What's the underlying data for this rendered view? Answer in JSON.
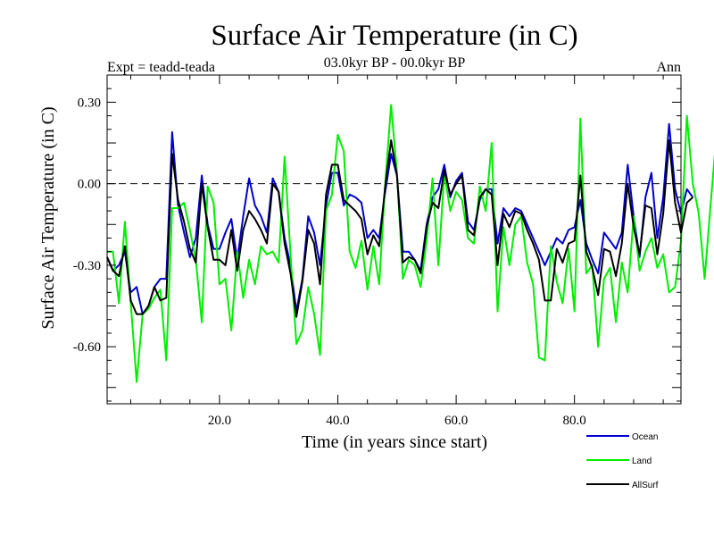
{
  "chart_data": {
    "type": "line",
    "title": "Surface Air Temperature (in C)",
    "subtitle": "03.0kyr BP - 00.0kyr BP",
    "expt_label": "Expt = teadd-teada",
    "period_label": "Ann",
    "xlabel": "Time (in years since start)",
    "ylabel": "Surface Air Temperature (in C)",
    "xlim": [
      1,
      98
    ],
    "ylim": [
      -0.81,
      0.4
    ],
    "x_ticks": [
      20,
      40,
      60,
      80
    ],
    "x_tick_labels": [
      "20.0",
      "40.0",
      "60.0",
      "80.0"
    ],
    "y_ticks": [
      0.3,
      0.0,
      -0.3,
      -0.6
    ],
    "y_tick_labels": [
      "0.30",
      "0.00",
      "-0.30",
      "-0.60"
    ],
    "zero_line": "dashed",
    "legend_position": "bottom-right",
    "x_start": 1,
    "series": [
      {
        "name": "Ocean",
        "color": "#0000cc",
        "values": [
          -0.27,
          -0.32,
          -0.3,
          -0.25,
          -0.4,
          -0.38,
          -0.48,
          -0.45,
          -0.38,
          -0.35,
          -0.35,
          0.19,
          -0.08,
          -0.18,
          -0.27,
          -0.2,
          0.03,
          -0.15,
          -0.24,
          -0.24,
          -0.18,
          -0.13,
          -0.28,
          -0.12,
          0.02,
          -0.08,
          -0.12,
          -0.18,
          0.02,
          -0.03,
          -0.2,
          -0.3,
          -0.47,
          -0.35,
          -0.12,
          -0.18,
          -0.3,
          -0.08,
          0.04,
          0.04,
          -0.08,
          -0.04,
          -0.05,
          -0.07,
          -0.2,
          -0.17,
          -0.2,
          -0.03,
          0.11,
          0.03,
          -0.25,
          -0.25,
          -0.28,
          -0.32,
          -0.15,
          -0.05,
          -0.02,
          0.07,
          -0.05,
          0.01,
          0.04,
          -0.14,
          -0.17,
          -0.06,
          -0.02,
          -0.02,
          -0.22,
          -0.09,
          -0.12,
          -0.09,
          -0.1,
          -0.15,
          -0.2,
          -0.25,
          -0.3,
          -0.25,
          -0.2,
          -0.22,
          -0.17,
          -0.16,
          -0.06,
          -0.22,
          -0.28,
          -0.33,
          -0.18,
          -0.21,
          -0.24,
          -0.18,
          0.07,
          -0.12,
          -0.27,
          -0.05,
          0.04,
          -0.2,
          -0.05,
          0.22,
          -0.02,
          -0.11,
          -0.02,
          -0.05
        ]
      },
      {
        "name": "Land",
        "color": "#00ee00",
        "values": [
          -0.25,
          -0.25,
          -0.44,
          -0.14,
          -0.44,
          -0.73,
          -0.48,
          -0.46,
          -0.42,
          -0.39,
          -0.65,
          -0.09,
          -0.09,
          -0.07,
          -0.17,
          -0.28,
          -0.51,
          -0.01,
          -0.07,
          -0.37,
          -0.35,
          -0.54,
          -0.25,
          -0.42,
          -0.28,
          -0.37,
          -0.23,
          -0.26,
          -0.25,
          -0.29,
          0.1,
          -0.26,
          -0.59,
          -0.54,
          -0.38,
          -0.48,
          -0.63,
          -0.1,
          -0.04,
          0.18,
          0.12,
          -0.25,
          -0.31,
          -0.21,
          -0.39,
          -0.23,
          -0.37,
          0.0,
          0.29,
          0.04,
          -0.35,
          -0.28,
          -0.3,
          -0.38,
          -0.21,
          0.02,
          -0.3,
          0.04,
          -0.1,
          -0.03,
          -0.06,
          -0.2,
          -0.22,
          -0.01,
          -0.1,
          0.15,
          -0.47,
          -0.16,
          -0.3,
          -0.15,
          -0.12,
          -0.29,
          -0.37,
          -0.64,
          -0.65,
          -0.23,
          -0.36,
          -0.44,
          -0.24,
          -0.47,
          0.24,
          -0.33,
          -0.3,
          -0.6,
          -0.35,
          -0.31,
          -0.51,
          -0.29,
          -0.4,
          -0.12,
          -0.32,
          -0.25,
          -0.2,
          -0.31,
          -0.26,
          -0.4,
          -0.38,
          -0.21,
          0.25,
          0.0,
          -0.11,
          -0.35,
          -0.08,
          0.18
        ]
      },
      {
        "name": "AllSurf",
        "color": "#000000",
        "values": [
          -0.27,
          -0.32,
          -0.34,
          -0.23,
          -0.43,
          -0.48,
          -0.48,
          -0.45,
          -0.38,
          -0.43,
          -0.42,
          0.11,
          -0.06,
          -0.14,
          -0.24,
          -0.29,
          0.0,
          -0.16,
          -0.28,
          -0.28,
          -0.3,
          -0.17,
          -0.32,
          -0.17,
          -0.1,
          -0.13,
          -0.17,
          -0.22,
          0.0,
          -0.03,
          -0.22,
          -0.33,
          -0.49,
          -0.36,
          -0.17,
          -0.22,
          -0.37,
          -0.04,
          0.07,
          0.07,
          -0.06,
          -0.08,
          -0.1,
          -0.13,
          -0.26,
          -0.19,
          -0.23,
          -0.01,
          0.16,
          0.03,
          -0.29,
          -0.27,
          -0.28,
          -0.33,
          -0.16,
          -0.07,
          -0.09,
          0.05,
          -0.04,
          0.0,
          0.03,
          -0.17,
          -0.19,
          -0.05,
          -0.02,
          -0.04,
          -0.3,
          -0.11,
          -0.16,
          -0.1,
          -0.11,
          -0.17,
          -0.22,
          -0.28,
          -0.43,
          -0.43,
          -0.24,
          -0.29,
          -0.22,
          -0.21,
          0.03,
          -0.25,
          -0.31,
          -0.41,
          -0.24,
          -0.25,
          -0.34,
          -0.22,
          0.0,
          -0.16,
          -0.26,
          -0.08,
          -0.09,
          -0.26,
          -0.11,
          0.16,
          -0.07,
          -0.18,
          -0.07,
          -0.05
        ]
      }
    ]
  }
}
